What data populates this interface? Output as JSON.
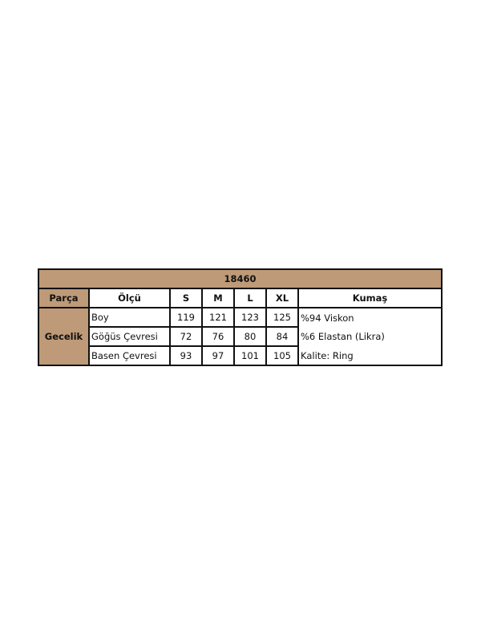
{
  "table": {
    "title": "18460",
    "headers": [
      "Parça",
      "Ölçü",
      "S",
      "M",
      "L",
      "XL",
      "Kumaş"
    ],
    "part": "Gecelik",
    "rows": [
      {
        "measure": "Boy",
        "values": [
          "119",
          "121",
          "123",
          "125"
        ],
        "fabric": "%94 Viskon"
      },
      {
        "measure": "Göğüs Çevresi",
        "values": [
          "72",
          "76",
          "80",
          "84"
        ],
        "fabric": "%6 Elastan (Likra)"
      },
      {
        "measure": "Basen Çevresi",
        "values": [
          "93",
          "97",
          "101",
          "105"
        ],
        "fabric": "Kalite: Ring"
      }
    ],
    "header_color": "#BE9A78"
  }
}
